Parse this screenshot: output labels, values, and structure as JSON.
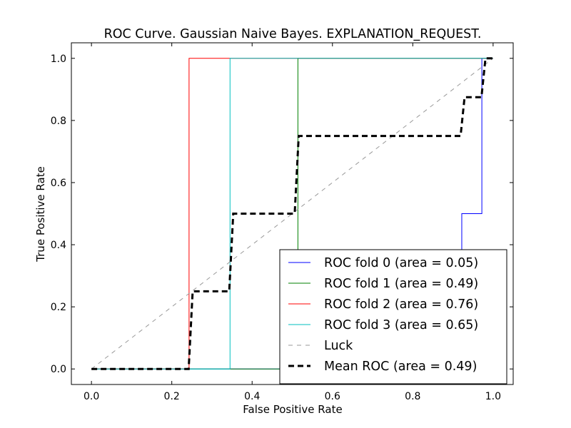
{
  "chart_data": {
    "type": "line",
    "title": "ROC Curve. Gaussian Naive Bayes. EXPLANATION_REQUEST.",
    "xlabel": "False Positive Rate",
    "ylabel": "True Positive Rate",
    "xlim": [
      -0.05,
      1.05
    ],
    "ylim": [
      -0.05,
      1.05
    ],
    "xticks": [
      "0.0",
      "0.2",
      "0.4",
      "0.6",
      "0.8",
      "1.0"
    ],
    "xtick_values": [
      0.0,
      0.2,
      0.4,
      0.6,
      0.8,
      1.0
    ],
    "yticks": [
      "0.0",
      "0.2",
      "0.4",
      "0.6",
      "0.8",
      "1.0"
    ],
    "ytick_values": [
      0.0,
      0.2,
      0.4,
      0.6,
      0.8,
      1.0
    ],
    "grid": false,
    "legend_position": "lower-right",
    "series": [
      {
        "name": "ROC fold 0 (area = 0.05)",
        "color": "#0000ff",
        "style": "solid",
        "x": [
          0.0,
          0.922,
          0.922,
          0.972,
          0.972,
          0.972,
          1.0
        ],
        "y": [
          0.0,
          0.0,
          0.5,
          0.5,
          1.0,
          1.0,
          1.0
        ]
      },
      {
        "name": "ROC fold 1 (area = 0.49)",
        "color": "#008000",
        "style": "solid",
        "x": [
          0.0,
          0.514,
          0.514,
          1.0
        ],
        "y": [
          0.0,
          0.0,
          1.0,
          1.0
        ]
      },
      {
        "name": "ROC fold 2 (area = 0.76)",
        "color": "#ff0000",
        "style": "solid",
        "x": [
          0.0,
          0.243,
          0.243,
          1.0
        ],
        "y": [
          0.0,
          0.0,
          1.0,
          1.0
        ]
      },
      {
        "name": "ROC fold 3 (area = 0.65)",
        "color": "#00bfbf",
        "style": "solid",
        "x": [
          0.0,
          0.345,
          0.345,
          1.0
        ],
        "y": [
          0.0,
          0.0,
          1.0,
          1.0
        ]
      },
      {
        "name": "Luck",
        "color": "#999999",
        "style": "dashed",
        "x": [
          0.0,
          1.0
        ],
        "y": [
          0.0,
          1.0
        ]
      },
      {
        "name": "Mean ROC (area = 0.49)",
        "color": "#000000",
        "style": "bold-dashed",
        "x": [
          0.0,
          0.242,
          0.252,
          0.343,
          0.353,
          0.506,
          0.516,
          0.919,
          0.929,
          0.971,
          0.981,
          1.0
        ],
        "y": [
          0.0,
          0.0,
          0.25,
          0.25,
          0.5,
          0.5,
          0.75,
          0.75,
          0.875,
          0.875,
          1.0,
          1.0
        ]
      }
    ]
  }
}
